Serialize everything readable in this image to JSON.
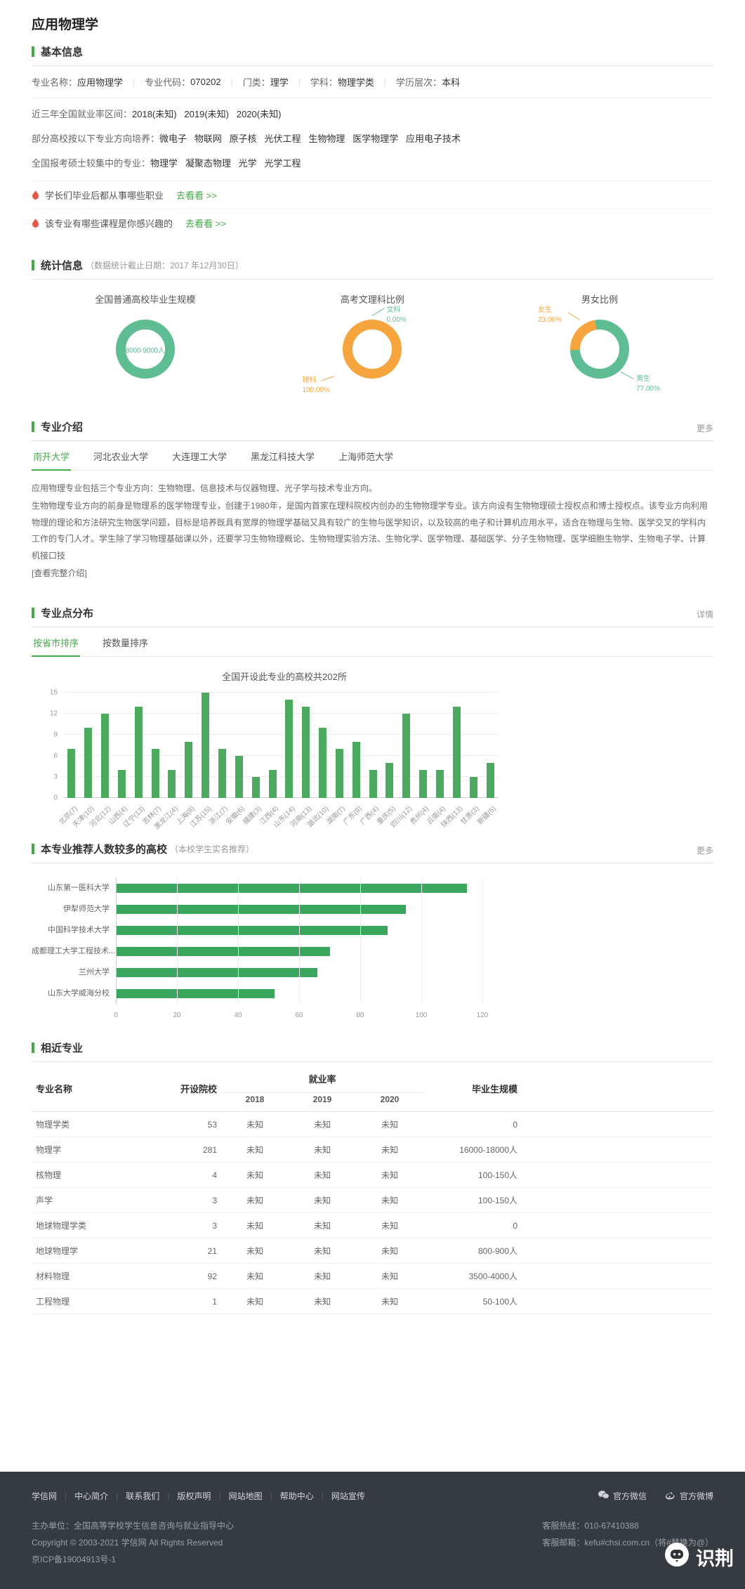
{
  "colors": {
    "green": "#44a948",
    "teal": "#5fbd93",
    "orange": "#f6a53e",
    "bar_green": "#4cab5f",
    "hbar_green": "#3aa55c"
  },
  "page": {
    "title": "应用物理学"
  },
  "basic_info": {
    "title": "基本信息",
    "meta": [
      {
        "label": "专业名称：",
        "value": "应用物理学"
      },
      {
        "label": "专业代码：",
        "value": "070202"
      },
      {
        "label": "门类：",
        "value": "理学"
      },
      {
        "label": "学科：",
        "value": "物理学类"
      },
      {
        "label": "学历层次：",
        "value": "本科"
      }
    ],
    "rows": [
      {
        "label": "近三年全国就业率区间：",
        "value": "2018(未知)   2019(未知)   2020(未知)"
      },
      {
        "label": "部分高校按以下专业方向培养：",
        "value": "微电子   物联网   原子核   光伏工程   生物物理   医学物理学   应用电子技术"
      },
      {
        "label": "全国报考硕士较集中的专业：",
        "value": "物理学   凝聚态物理   光学   光学工程"
      }
    ],
    "promos": [
      {
        "text": "学长们毕业后都从事哪些职业",
        "link": "去看看 >>"
      },
      {
        "text": "该专业有哪些课程是你感兴趣的",
        "link": "去看看 >>"
      }
    ]
  },
  "statistics": {
    "title": "统计信息",
    "subtitle": "（数据统计截止日期：2017 年12月30日）",
    "donuts": [
      {
        "title": "全国普通高校毕业生规模",
        "center_text": "8000-9000人"
      },
      {
        "title": "高考文理科比例",
        "slices": [
          {
            "name": "文科",
            "pct_label": "0.00%",
            "value": 0
          },
          {
            "name": "理科",
            "pct_label": "100.00%",
            "value": 100
          }
        ]
      },
      {
        "title": "男女比例",
        "slices": [
          {
            "name": "女生",
            "pct_label": "23.00%",
            "value": 23
          },
          {
            "name": "男生",
            "pct_label": "77.00%",
            "value": 77
          }
        ]
      }
    ]
  },
  "intro": {
    "title": "专业介绍",
    "more": "更多",
    "tabs": [
      "南开大学",
      "河北农业大学",
      "大连理工大学",
      "黑龙江科技大学",
      "上海师范大学"
    ],
    "paragraphs": [
      "应用物理专业包括三个专业方向：生物物理、信息技术与仪器物理、光子学与技术专业方向。",
      "生物物理专业方向的前身是物理系的医学物理专业，创建于1980年，是国内首家在理科院校内创办的生物物理学专业。该方向设有生物物理硕士授权点和博士授权点。该专业方向利用物理的理论和方法研究生物医学问题，目标是培养既具有宽厚的物理学基础又具有较广的生物与医学知识，以及较高的电子和计算机应用水平，适合在物理与生物、医学交叉的学科内工作的专门人才。学生除了学习物理基础课以外，还要学习生物物理概论、生物物理实验方法、生物化学、医学物理、基础医学、分子生物物理、医学细胞生物学、生物电子学、计算机接口技",
      "[查看完整介绍]"
    ]
  },
  "distribution": {
    "title": "专业点分布",
    "more": "详情",
    "tabs": [
      "按省市排序",
      "按数量排序"
    ],
    "chart_title": "全国开设此专业的高校共202所",
    "chart_data": {
      "type": "bar",
      "ymax": 15,
      "y_ticks": [
        0,
        3,
        6,
        9,
        12,
        15
      ],
      "items": [
        {
          "label": "北京(7)",
          "value": 7
        },
        {
          "label": "天津(10)",
          "value": 10
        },
        {
          "label": "河北(12)",
          "value": 12
        },
        {
          "label": "山西(4)",
          "value": 4
        },
        {
          "label": "辽宁(13)",
          "value": 13
        },
        {
          "label": "吉林(7)",
          "value": 7
        },
        {
          "label": "黑龙江(4)",
          "value": 4
        },
        {
          "label": "上海(8)",
          "value": 8
        },
        {
          "label": "江苏(15)",
          "value": 15
        },
        {
          "label": "浙江(7)",
          "value": 7
        },
        {
          "label": "安徽(6)",
          "value": 6
        },
        {
          "label": "福建(3)",
          "value": 3
        },
        {
          "label": "江西(4)",
          "value": 4
        },
        {
          "label": "山东(14)",
          "value": 14
        },
        {
          "label": "河南(13)",
          "value": 13
        },
        {
          "label": "湖北(10)",
          "value": 10
        },
        {
          "label": "湖南(7)",
          "value": 7
        },
        {
          "label": "广东(8)",
          "value": 8
        },
        {
          "label": "广西(4)",
          "value": 4
        },
        {
          "label": "重庆(5)",
          "value": 5
        },
        {
          "label": "四川(12)",
          "value": 12
        },
        {
          "label": "贵州(4)",
          "value": 4
        },
        {
          "label": "云南(4)",
          "value": 4
        },
        {
          "label": "陕西(13)",
          "value": 13
        },
        {
          "label": "甘肃(3)",
          "value": 3
        },
        {
          "label": "新疆(5)",
          "value": 5
        }
      ]
    }
  },
  "recommend": {
    "title": "本专业推荐人数较多的高校",
    "note": "（本校学生实名推荐）",
    "more": "更多",
    "chart_data": {
      "type": "bar-horizontal",
      "xmax": 120,
      "x_ticks": [
        0,
        20,
        40,
        60,
        80,
        100,
        120
      ],
      "items": [
        {
          "label": "山东第一医科大学",
          "value": 115
        },
        {
          "label": "伊犁师范大学",
          "value": 95
        },
        {
          "label": "中国科学技术大学",
          "value": 89
        },
        {
          "label": "成都理工大学工程技术...",
          "value": 70
        },
        {
          "label": "兰州大学",
          "value": 66
        },
        {
          "label": "山东大学威海分校",
          "value": 52
        }
      ]
    }
  },
  "similar": {
    "title": "相近专业",
    "headers": {
      "name": "专业名称",
      "schools": "开设院校",
      "employment": "就业率",
      "years": [
        "2018",
        "2019",
        "2020"
      ],
      "scale": "毕业生规模"
    },
    "rows": [
      {
        "name": "物理学类",
        "schools": "53",
        "y2018": "未知",
        "y2019": "未知",
        "y2020": "未知",
        "scale": "0"
      },
      {
        "name": "物理学",
        "schools": "281",
        "y2018": "未知",
        "y2019": "未知",
        "y2020": "未知",
        "scale": "16000-18000人"
      },
      {
        "name": "核物理",
        "schools": "4",
        "y2018": "未知",
        "y2019": "未知",
        "y2020": "未知",
        "scale": "100-150人"
      },
      {
        "name": "声学",
        "schools": "3",
        "y2018": "未知",
        "y2019": "未知",
        "y2020": "未知",
        "scale": "100-150人"
      },
      {
        "name": "地球物理学类",
        "schools": "3",
        "y2018": "未知",
        "y2019": "未知",
        "y2020": "未知",
        "scale": "0"
      },
      {
        "name": "地球物理学",
        "schools": "21",
        "y2018": "未知",
        "y2019": "未知",
        "y2020": "未知",
        "scale": "800-900人"
      },
      {
        "name": "材料物理",
        "schools": "92",
        "y2018": "未知",
        "y2019": "未知",
        "y2020": "未知",
        "scale": "3500-4000人"
      },
      {
        "name": "工程物理",
        "schools": "1",
        "y2018": "未知",
        "y2019": "未知",
        "y2020": "未知",
        "scale": "50-100人"
      }
    ]
  },
  "footer": {
    "links": [
      "学信网",
      "中心简介",
      "联系我们",
      "版权声明",
      "网站地图",
      "帮助中心",
      "网站宣传"
    ],
    "social": [
      {
        "label": "官方微信"
      },
      {
        "label": "官方微博"
      }
    ],
    "host": "主办单位：全国高等学校学生信息咨询与就业指导中心",
    "copyright": "Copyright © 2003-2021 学信网 All Rights Reserved",
    "icp": "京ICP备19004913号-1",
    "hotline": "客服热线：010-67410388",
    "email": "客服邮箱：kefu#chsi.com.cn（将#替换为@）",
    "watermark": "识荆"
  }
}
